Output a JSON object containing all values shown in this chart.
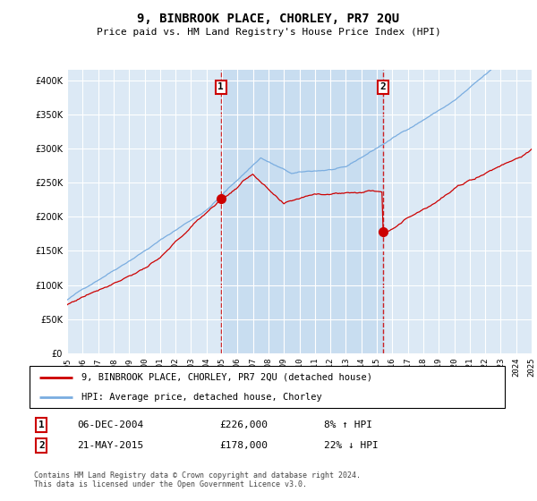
{
  "title": "9, BINBROOK PLACE, CHORLEY, PR7 2QU",
  "subtitle": "Price paid vs. HM Land Registry's House Price Index (HPI)",
  "background_color": "#dce9f5",
  "plot_bg_color": "#dce9f5",
  "highlight_color": "#c8ddf0",
  "ylim": [
    0,
    410000
  ],
  "yticks": [
    0,
    50000,
    100000,
    150000,
    200000,
    250000,
    300000,
    350000,
    400000
  ],
  "sale1_price": 226000,
  "sale1_label": "1",
  "sale1_x": 2004.93,
  "sale2_price": 178000,
  "sale2_label": "2",
  "sale2_x": 2015.39,
  "red_line_color": "#cc0000",
  "blue_line_color": "#7aade0",
  "dashed_line_color": "#cc0000",
  "legend_label_red": "9, BINBROOK PLACE, CHORLEY, PR7 2QU (detached house)",
  "legend_label_blue": "HPI: Average price, detached house, Chorley",
  "table_row1": [
    "1",
    "06-DEC-2004",
    "£226,000",
    "8% ↑ HPI"
  ],
  "table_row2": [
    "2",
    "21-MAY-2015",
    "£178,000",
    "22% ↓ HPI"
  ],
  "footer": "Contains HM Land Registry data © Crown copyright and database right 2024.\nThis data is licensed under the Open Government Licence v3.0.",
  "xmin": 1995,
  "xmax": 2025
}
